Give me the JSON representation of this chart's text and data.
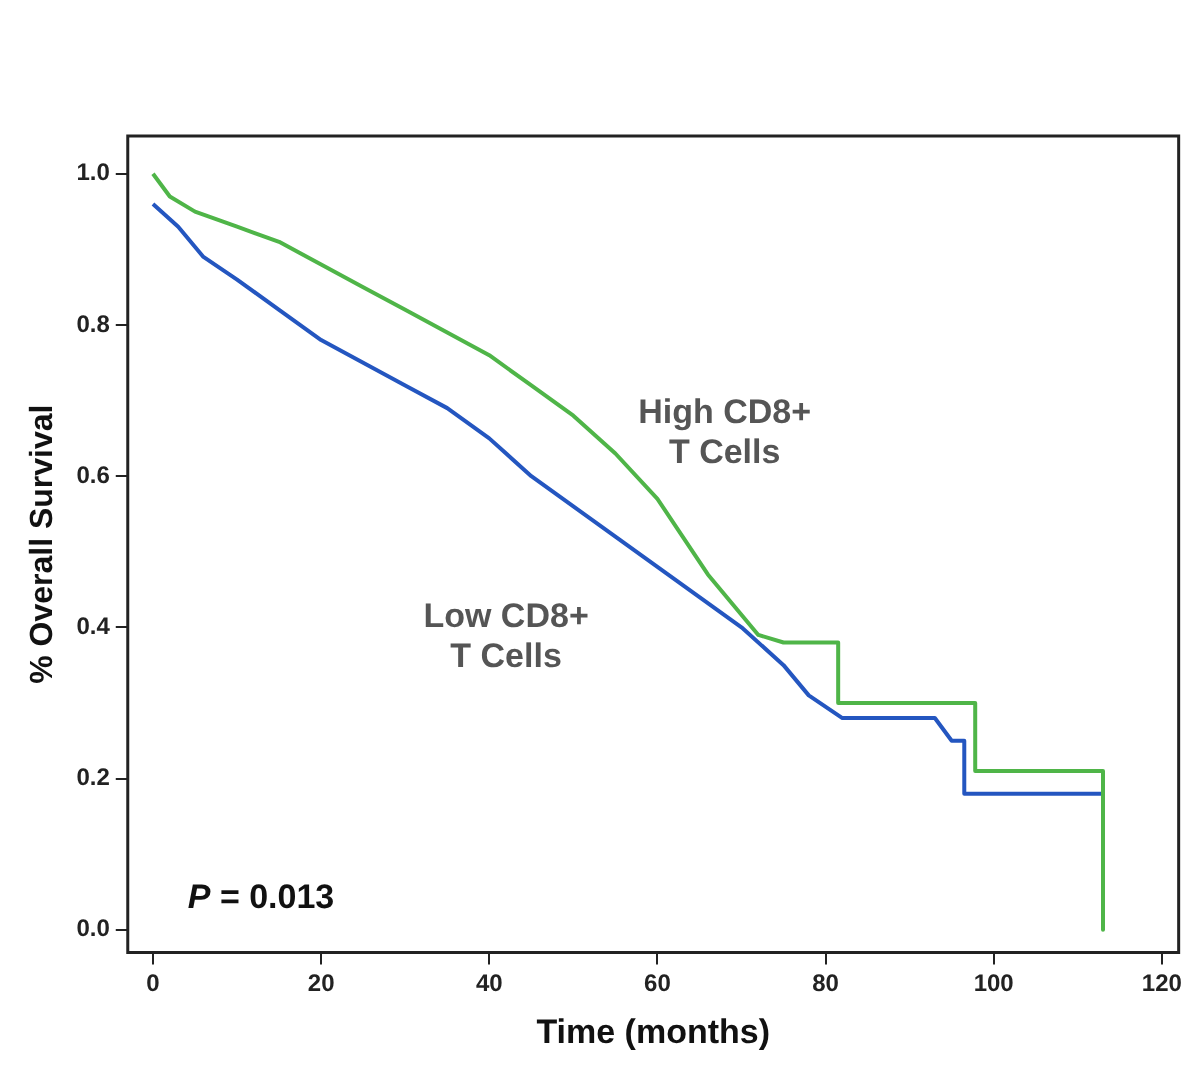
{
  "chart_data": {
    "type": "line",
    "xlabel": "Time (months)",
    "ylabel": "% Overall Survival",
    "xlim": [
      -3,
      122
    ],
    "xticks": [
      0,
      20,
      40,
      60,
      80,
      100,
      120
    ],
    "ylim": [
      -0.03,
      1.05
    ],
    "yticks": [
      {
        "value": 0,
        "label": "0.0"
      },
      {
        "value": 0.2,
        "label": "0.2"
      },
      {
        "value": 0.4,
        "label": "0.4"
      },
      {
        "value": 0.6,
        "label": "0.6"
      },
      {
        "value": 0.8,
        "label": "0.8"
      },
      {
        "value": 1,
        "label": "1.0"
      }
    ],
    "grid": false,
    "legend": false,
    "marker": "none",
    "line_style": "solid",
    "annotations": [
      "P = 0.013"
    ],
    "series": [
      {
        "name": "High CD8+ T Cells",
        "color": "#4fb548",
        "x": [
          0,
          2,
          5,
          10,
          15,
          20,
          25,
          30,
          35,
          40,
          45,
          50,
          55,
          60,
          63,
          66,
          69,
          72,
          75,
          81.5,
          81.5,
          97.8,
          97.8,
          113,
          113
        ],
        "values": [
          1.0,
          0.97,
          0.95,
          0.93,
          0.91,
          0.88,
          0.85,
          0.82,
          0.79,
          0.76,
          0.72,
          0.68,
          0.63,
          0.57,
          0.52,
          0.47,
          0.43,
          0.39,
          0.38,
          0.38,
          0.3,
          0.3,
          0.21,
          0.21,
          0.0
        ]
      },
      {
        "name": "Low CD8+ T Cells",
        "color": "#2456c0",
        "x": [
          0,
          3,
          6,
          10,
          15,
          20,
          25,
          30,
          35,
          40,
          45,
          50,
          55,
          60,
          65,
          70,
          75,
          78,
          82,
          93,
          95,
          96.5,
          96.5,
          113
        ],
        "values": [
          0.96,
          0.93,
          0.89,
          0.86,
          0.82,
          0.78,
          0.75,
          0.72,
          0.69,
          0.65,
          0.6,
          0.56,
          0.52,
          0.48,
          0.44,
          0.4,
          0.35,
          0.31,
          0.28,
          0.28,
          0.25,
          0.25,
          0.18,
          0.18
        ]
      }
    ]
  }
}
